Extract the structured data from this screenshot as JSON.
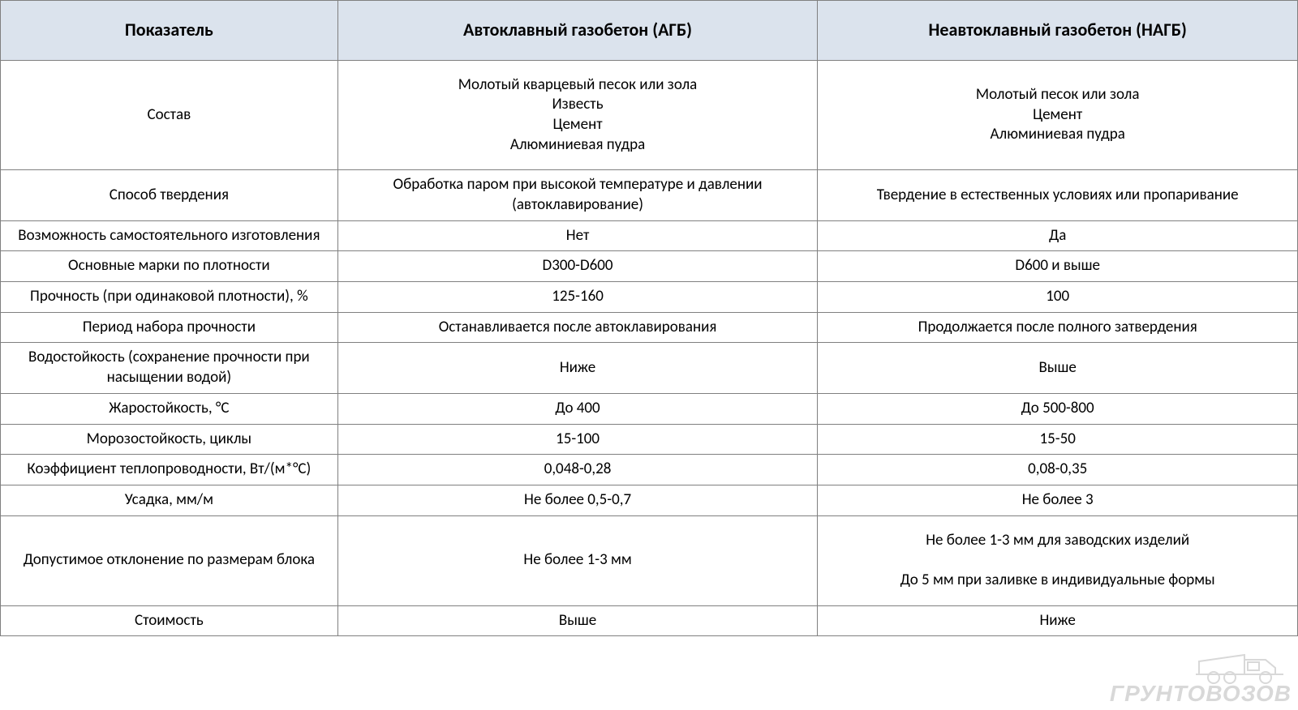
{
  "table": {
    "columns": [
      {
        "label": "Показатель",
        "width": "26%"
      },
      {
        "label": "Автоклавный газобетон (АГБ)",
        "width": "37%"
      },
      {
        "label": "Неавтоклавный газобетон (НАГБ)",
        "width": "37%"
      }
    ],
    "header_bg": "#dbe3ed",
    "border_color": "#808080",
    "header_fontsize": 22,
    "cell_fontsize": 19,
    "rows": [
      {
        "param": "Состав",
        "agb": "Молотый кварцевый песок или зола\nИзвесть\nЦемент\nАлюминиевая пудра",
        "nagb": "Молотый песок или зола\nЦемент\nАлюминиевая пудра",
        "tall": true
      },
      {
        "param": "Способ твердения",
        "agb": "Обработка паром при высокой температуре и давлении (автоклавирование)",
        "nagb": "Твердение в естественных условиях или пропаривание"
      },
      {
        "param": "Возможность самостоятельного изготовления",
        "agb": "Нет",
        "nagb": "Да"
      },
      {
        "param": "Основные марки по плотности",
        "agb": "D300-D600",
        "nagb": "D600 и выше"
      },
      {
        "param": "Прочность (при одинаковой плотности), %",
        "agb": "125-160",
        "nagb": "100"
      },
      {
        "param": "Период набора прочности",
        "agb": "Останавливается после автоклавирования",
        "nagb": "Продолжается после полного затвердения"
      },
      {
        "param": "Водостойкость (сохранение прочности при насыщении водой)",
        "agb": "Ниже",
        "nagb": "Выше"
      },
      {
        "param": "Жаростойкость, °C",
        "agb": "До 400",
        "nagb": "До 500-800"
      },
      {
        "param": "Морозостойкость, циклы",
        "agb": "15-100",
        "nagb": "15-50"
      },
      {
        "param": "Коэффициент теплопроводности, Вт/(м*°C)",
        "agb": "0,048-0,28",
        "nagb": "0,08-0,35"
      },
      {
        "param": "Усадка, мм/м",
        "agb": "Не более 0,5-0,7",
        "nagb": "Не более 3"
      },
      {
        "param": "Допустимое отклонение по размерам блока",
        "agb": "Не более 1-3 мм",
        "nagb": "Не более 1-3 мм для заводских изделий\n\nДо 5 мм при заливке в индивидуальные формы",
        "tall": true
      },
      {
        "param": "Стоимость",
        "agb": "Выше",
        "nagb": "Ниже"
      }
    ]
  },
  "watermark": {
    "text": "ГРУНТОВОЗОВ",
    "color": "#2b2b2b",
    "opacity": 0.18
  }
}
